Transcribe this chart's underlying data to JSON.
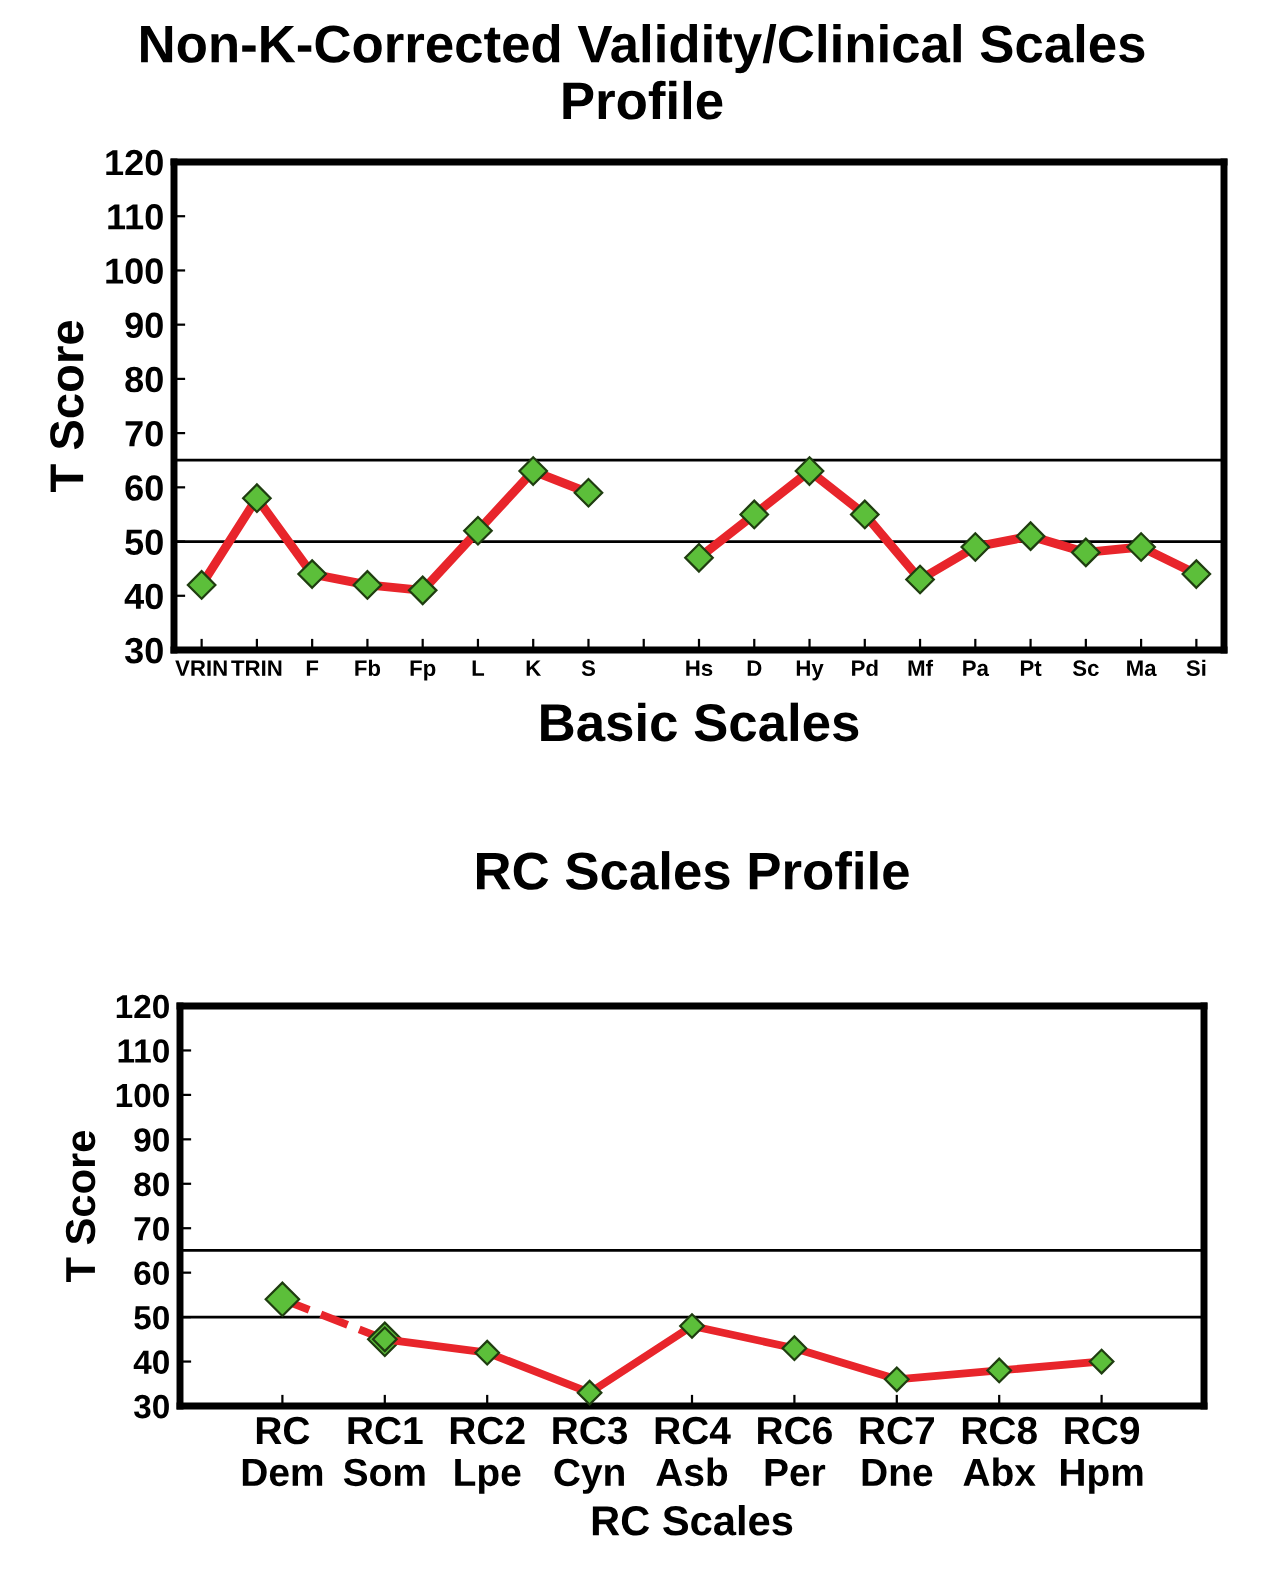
{
  "chart_data": [
    {
      "type": "line",
      "title": "Non-K-Corrected Validity/Clinical Scales Profile",
      "xlabel": "Basic Scales",
      "ylabel": "T Score",
      "categories": [
        "VRIN",
        "TRIN",
        "F",
        "Fb",
        "Fp",
        "L",
        "K",
        "S",
        null,
        "Hs",
        "D",
        "Hy",
        "Pd",
        "Mf",
        "Pa",
        "Pt",
        "Sc",
        "Ma",
        "Si"
      ],
      "series": [
        {
          "color": "#e8252b",
          "values": [
            42,
            58,
            44,
            42,
            41,
            52,
            63,
            59,
            null,
            47,
            55,
            63,
            55,
            43,
            49,
            51,
            48,
            49,
            44
          ]
        }
      ],
      "ylim": [
        30,
        120
      ],
      "yticks": [
        30,
        40,
        50,
        60,
        70,
        80,
        90,
        100,
        110,
        120
      ],
      "ref_lines": [
        {
          "axis": "y",
          "value": 65,
          "color": "#000000"
        },
        {
          "axis": "y",
          "value": 50,
          "color": "#000000"
        }
      ],
      "grid": false,
      "marker": "diamond",
      "line_style": "solid"
    },
    {
      "type": "line",
      "title": "RC Scales Profile",
      "xlabel": "RC Scales",
      "ylabel": "T Score",
      "categories": [
        "RC\nDem",
        "RC1\nSom",
        "RC2\nLpe",
        "RC3\nCyn",
        "RC4\nAsb",
        "RC6\nPer",
        "RC7\nDne",
        "RC8\nAbx",
        "RC9\nHpm"
      ],
      "series": [
        {
          "color": "#e8252b",
          "line_style": "dashed",
          "values": [
            54,
            45,
            null,
            null,
            null,
            null,
            null,
            null,
            null
          ]
        },
        {
          "color": "#e8252b",
          "line_style": "solid",
          "values": [
            null,
            45,
            42,
            33,
            48,
            43,
            36,
            38,
            40
          ]
        }
      ],
      "ylim": [
        30,
        120
      ],
      "yticks": [
        30,
        40,
        50,
        60,
        70,
        80,
        90,
        100,
        110,
        120
      ],
      "ref_lines": [
        {
          "axis": "y",
          "value": 65,
          "color": "#000000"
        },
        {
          "axis": "y",
          "value": 50,
          "color": "#000000"
        }
      ],
      "grid": false,
      "marker": "diamond"
    }
  ]
}
